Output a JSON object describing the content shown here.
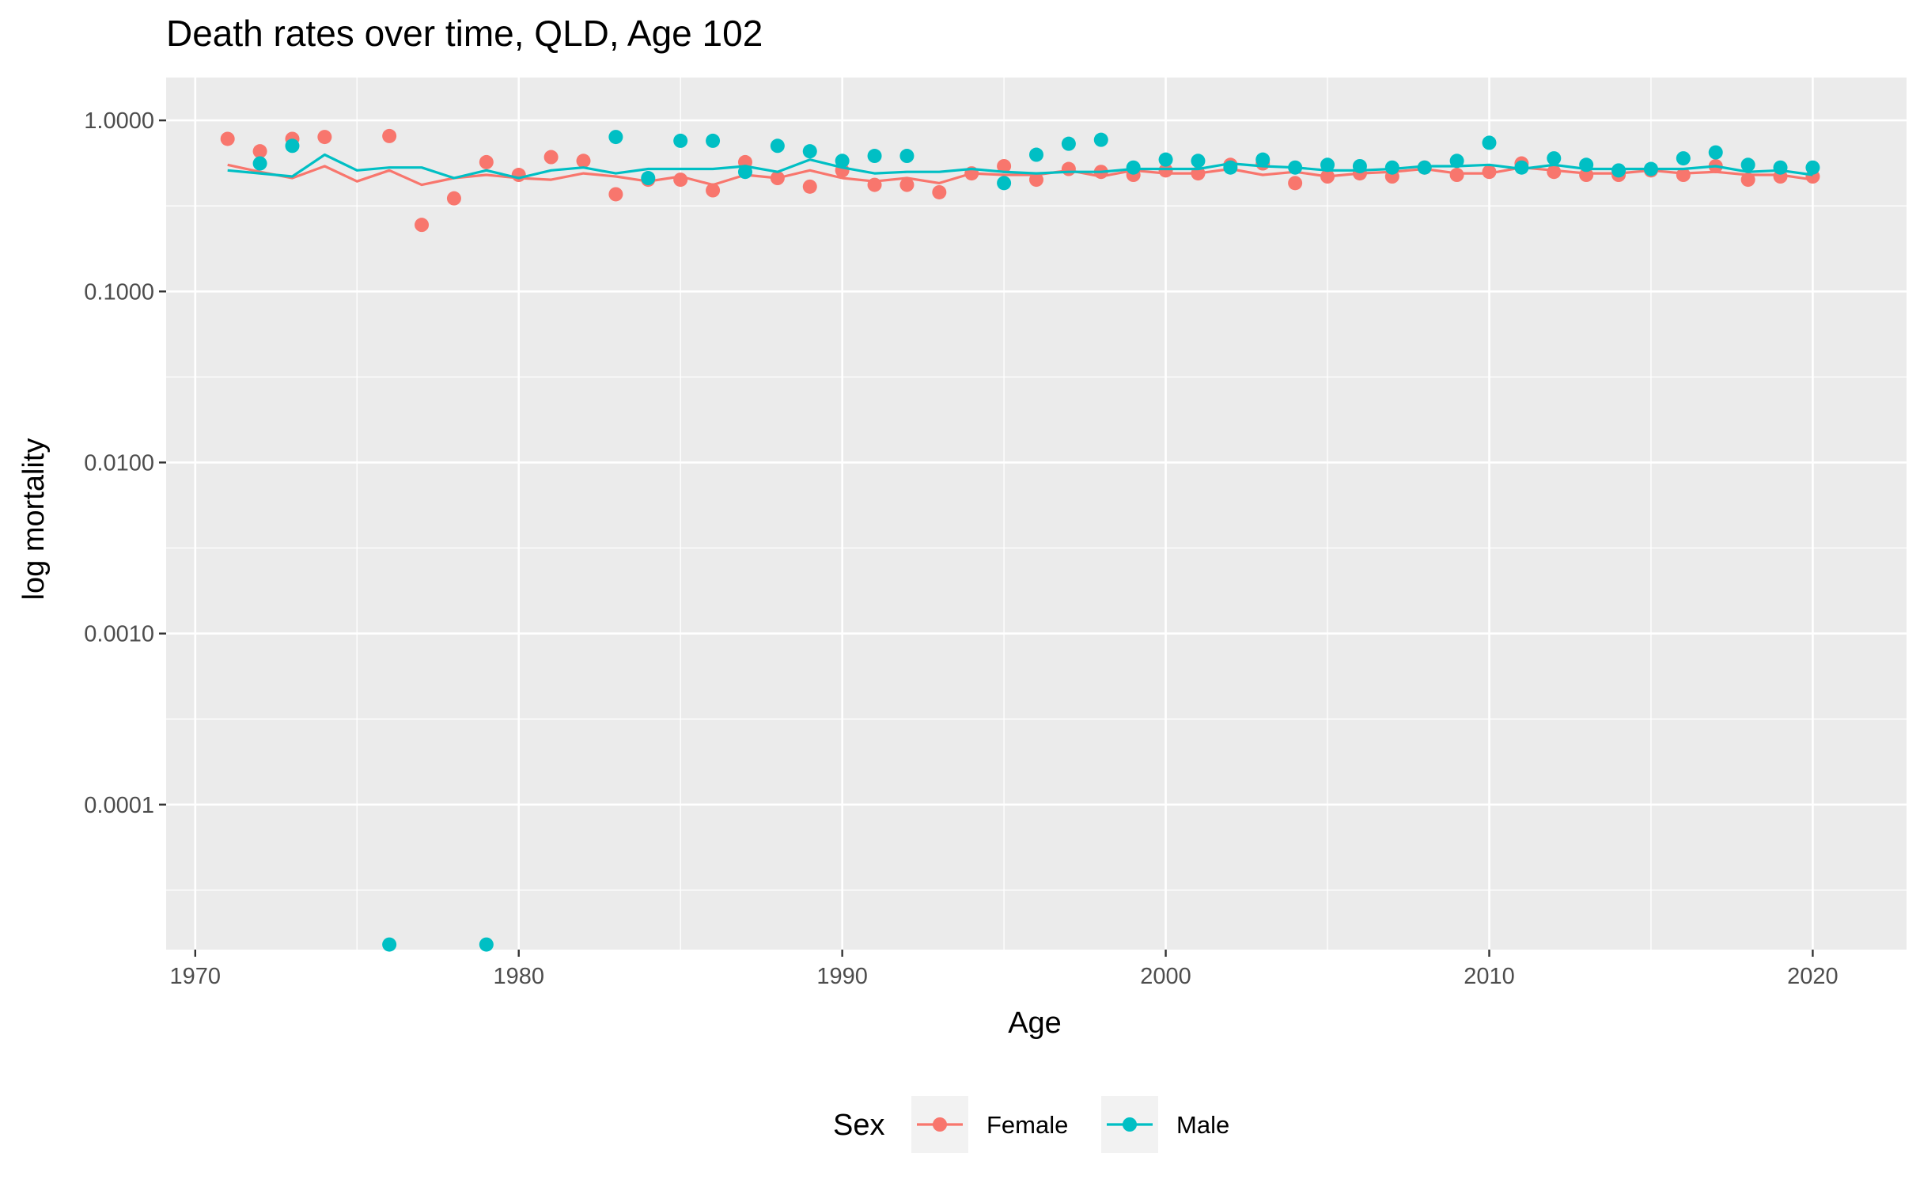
{
  "chart_data": {
    "type": "scatter",
    "title": "Death rates over time, QLD, Age 102",
    "xlabel": "Age",
    "ylabel": "log mortality",
    "y_scale": "log10",
    "xlim": [
      1969.1,
      2022.9
    ],
    "ylim": [
      1.42e-05,
      1.78
    ],
    "x_ticks": [
      1970,
      1980,
      1990,
      2000,
      2010,
      2020
    ],
    "x_tick_labels": [
      "1970",
      "1980",
      "1990",
      "2000",
      "2010",
      "2020"
    ],
    "y_ticks": [
      1,
      0.1,
      0.01,
      0.001,
      0.0001
    ],
    "y_tick_labels": [
      "1.0000",
      "0.1000",
      "0.0100",
      "0.0010",
      "0.0001"
    ],
    "grid": true,
    "legend": {
      "title": "Sex",
      "position": "bottom"
    },
    "series": [
      {
        "name": "Female",
        "color": "#F8766D",
        "points": {
          "x": [
            1971,
            1972,
            1973,
            1974,
            1976,
            1977,
            1978,
            1979,
            1980,
            1981,
            1982,
            1983,
            1984,
            1985,
            1986,
            1987,
            1988,
            1989,
            1990,
            1991,
            1992,
            1993,
            1994,
            1995,
            1996,
            1997,
            1998,
            1999,
            2000,
            2001,
            2002,
            2003,
            2004,
            2005,
            2006,
            2007,
            2008,
            2009,
            2010,
            2011,
            2012,
            2013,
            2014,
            2015,
            2016,
            2017,
            2018,
            2019,
            2020
          ],
          "y": [
            0.78,
            0.66,
            0.78,
            0.8,
            0.81,
            0.245,
            0.35,
            0.57,
            0.48,
            0.61,
            0.58,
            0.37,
            0.45,
            0.45,
            0.39,
            0.57,
            0.46,
            0.41,
            0.51,
            0.42,
            0.42,
            0.38,
            0.49,
            0.54,
            0.45,
            0.52,
            0.5,
            0.48,
            0.51,
            0.49,
            0.55,
            0.56,
            0.43,
            0.47,
            0.49,
            0.47,
            0.53,
            0.48,
            0.5,
            0.56,
            0.5,
            0.48,
            0.48,
            0.51,
            0.48,
            0.54,
            0.45,
            0.47,
            0.47
          ]
        },
        "fitted": {
          "x": [
            1971,
            1972,
            1973,
            1974,
            1975,
            1976,
            1977,
            1978,
            1979,
            1980,
            1981,
            1982,
            1983,
            1984,
            1985,
            1986,
            1987,
            1988,
            1989,
            1990,
            1991,
            1992,
            1993,
            1994,
            1995,
            1996,
            1997,
            1998,
            1999,
            2000,
            2001,
            2002,
            2003,
            2004,
            2005,
            2006,
            2007,
            2008,
            2009,
            2010,
            2011,
            2012,
            2013,
            2014,
            2015,
            2016,
            2017,
            2018,
            2019,
            2020
          ],
          "y": [
            0.55,
            0.5,
            0.46,
            0.54,
            0.44,
            0.51,
            0.42,
            0.46,
            0.48,
            0.46,
            0.45,
            0.49,
            0.47,
            0.44,
            0.47,
            0.42,
            0.48,
            0.46,
            0.51,
            0.46,
            0.44,
            0.46,
            0.43,
            0.49,
            0.48,
            0.48,
            0.51,
            0.47,
            0.51,
            0.49,
            0.49,
            0.52,
            0.48,
            0.5,
            0.47,
            0.49,
            0.5,
            0.52,
            0.49,
            0.49,
            0.53,
            0.51,
            0.49,
            0.49,
            0.51,
            0.49,
            0.5,
            0.48,
            0.48,
            0.45
          ]
        }
      },
      {
        "name": "Male",
        "color": "#00BFC4",
        "points": {
          "x": [
            1972,
            1973,
            1976,
            1979,
            1983,
            1984,
            1985,
            1986,
            1987,
            1988,
            1989,
            1990,
            1991,
            1992,
            1995,
            1996,
            1997,
            1998,
            1999,
            2000,
            2001,
            2002,
            2003,
            2004,
            2005,
            2006,
            2007,
            2008,
            2009,
            2010,
            2011,
            2012,
            2013,
            2014,
            2015,
            2016,
            2017,
            2018,
            2019,
            2020
          ],
          "y": [
            0.56,
            0.71,
            1.52e-05,
            1.52e-05,
            0.8,
            0.46,
            0.76,
            0.76,
            0.5,
            0.71,
            0.66,
            0.58,
            0.62,
            0.62,
            0.43,
            0.63,
            0.73,
            0.77,
            0.53,
            0.59,
            0.58,
            0.53,
            0.59,
            0.53,
            0.55,
            0.54,
            0.53,
            0.53,
            0.58,
            0.74,
            0.53,
            0.6,
            0.55,
            0.51,
            0.52,
            0.6,
            0.65,
            0.55,
            0.53,
            0.53
          ]
        },
        "fitted": {
          "x": [
            1971,
            1972,
            1973,
            1974,
            1975,
            1976,
            1977,
            1978,
            1979,
            1980,
            1981,
            1982,
            1983,
            1984,
            1985,
            1986,
            1987,
            1988,
            1989,
            1990,
            1991,
            1992,
            1993,
            1994,
            1995,
            1996,
            1997,
            1998,
            1999,
            2000,
            2001,
            2002,
            2003,
            2004,
            2005,
            2006,
            2007,
            2008,
            2009,
            2010,
            2011,
            2012,
            2013,
            2014,
            2015,
            2016,
            2017,
            2018,
            2019,
            2020
          ],
          "y": [
            0.51,
            0.49,
            0.47,
            0.63,
            0.51,
            0.53,
            0.53,
            0.46,
            0.51,
            0.46,
            0.51,
            0.53,
            0.49,
            0.52,
            0.52,
            0.52,
            0.54,
            0.5,
            0.59,
            0.53,
            0.49,
            0.5,
            0.5,
            0.52,
            0.5,
            0.49,
            0.5,
            0.5,
            0.52,
            0.52,
            0.52,
            0.56,
            0.54,
            0.53,
            0.51,
            0.51,
            0.52,
            0.54,
            0.54,
            0.55,
            0.52,
            0.55,
            0.52,
            0.52,
            0.52,
            0.52,
            0.54,
            0.5,
            0.51,
            0.48
          ]
        }
      }
    ]
  }
}
